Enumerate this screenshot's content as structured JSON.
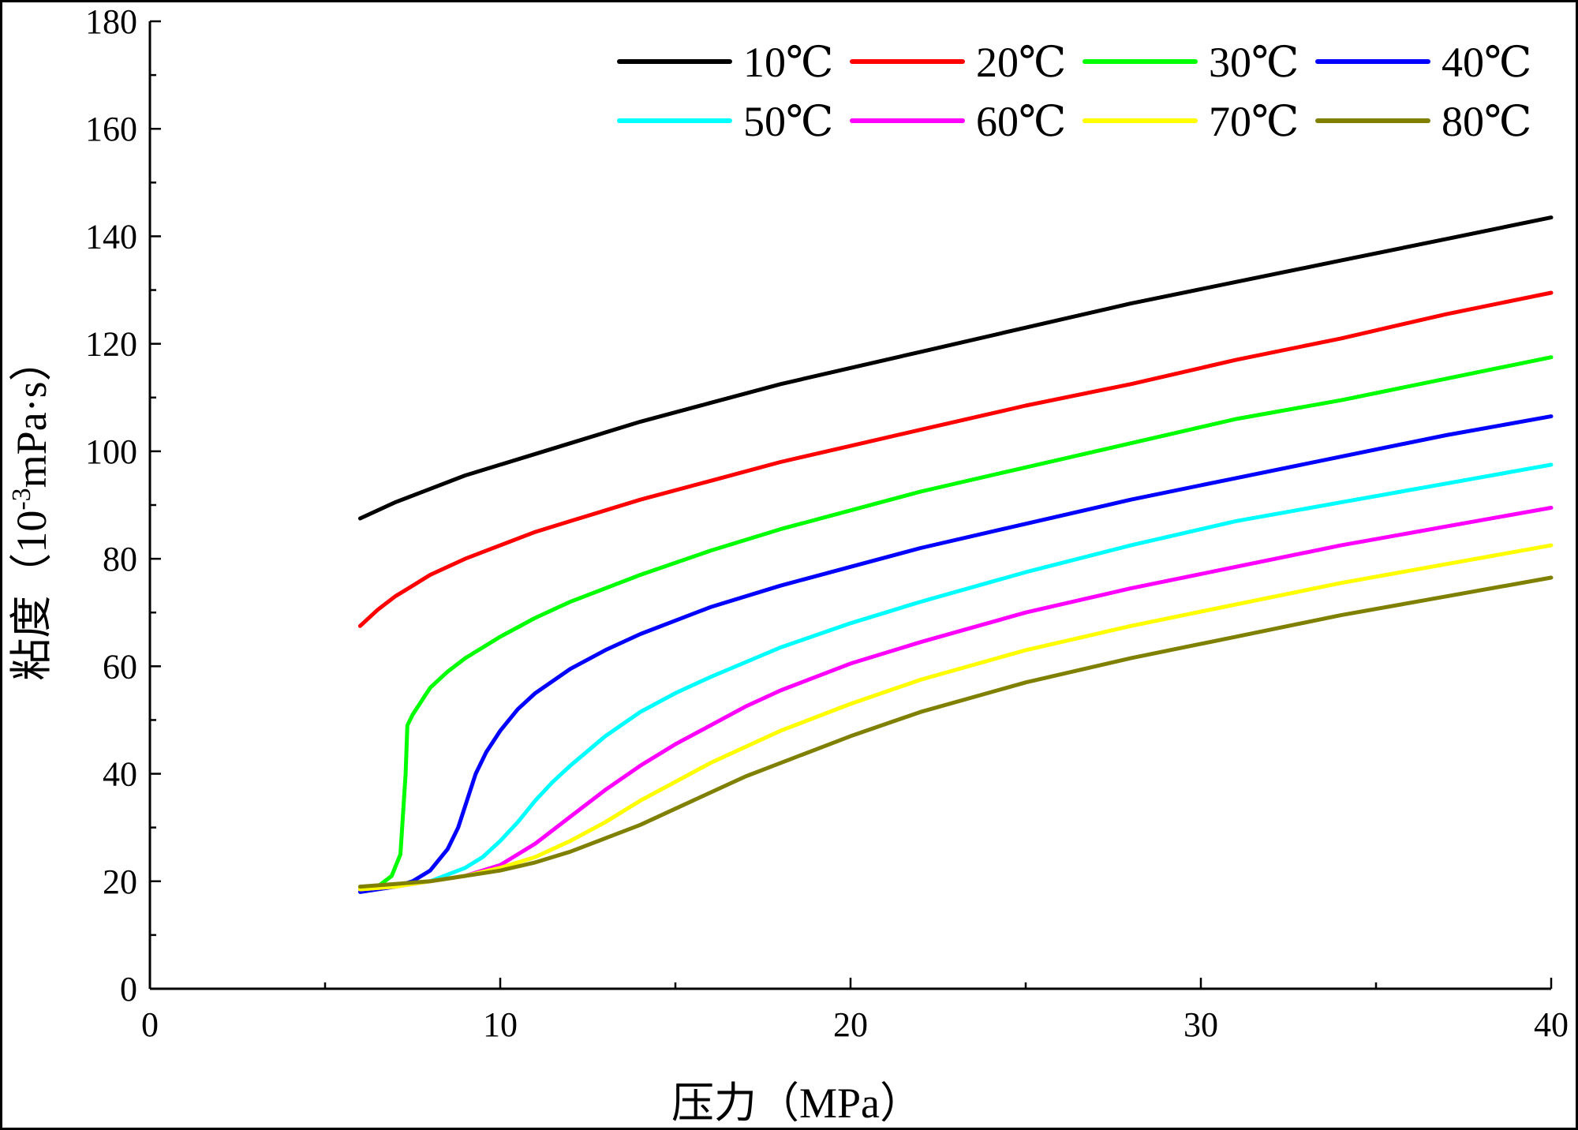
{
  "chart_data": {
    "type": "line",
    "title": "",
    "xlabel": "压力（MPa）",
    "ylabel": "粘度（10",
    "ylabel_sup": "-3",
    "ylabel_rest": "mPa·s）",
    "xlim": [
      0,
      40
    ],
    "ylim": [
      0,
      180
    ],
    "xticks": [
      0,
      10,
      20,
      30,
      40
    ],
    "yticks": [
      0,
      20,
      40,
      60,
      80,
      100,
      120,
      140,
      160,
      180
    ],
    "x_minor_step": 5,
    "y_minor_step": 10,
    "grid": false,
    "legend_position": "top-right",
    "series": [
      {
        "name": "10℃",
        "color": "#000000",
        "x": [
          6,
          7,
          8,
          9,
          10,
          11,
          12,
          14,
          16,
          18,
          20,
          22,
          25,
          28,
          31,
          34,
          37,
          40
        ],
        "y": [
          87.5,
          90.5,
          93.0,
          95.5,
          97.5,
          99.5,
          101.5,
          105.5,
          109.0,
          112.5,
          115.5,
          118.5,
          123.0,
          127.5,
          131.5,
          135.5,
          139.5,
          143.5
        ]
      },
      {
        "name": "20℃",
        "color": "#ff0000",
        "x": [
          6,
          6.5,
          7,
          7.5,
          8,
          9,
          10,
          11,
          12,
          14,
          16,
          18,
          20,
          22,
          25,
          28,
          31,
          34,
          37,
          40
        ],
        "y": [
          67.5,
          70.5,
          73.0,
          75.0,
          77.0,
          80.0,
          82.5,
          85.0,
          87.0,
          91.0,
          94.5,
          98.0,
          101.0,
          104.0,
          108.5,
          112.5,
          117.0,
          121.0,
          125.5,
          129.5
        ]
      },
      {
        "name": "30℃",
        "color": "#00ff00",
        "x": [
          6,
          6.5,
          6.9,
          7.15,
          7.3,
          7.35,
          7.5,
          8,
          8.5,
          9,
          9.5,
          10,
          11,
          12,
          13,
          14,
          16,
          18,
          20,
          22,
          25,
          28,
          31,
          34,
          37,
          40
        ],
        "y": [
          18.5,
          19.0,
          21.0,
          25.0,
          40.0,
          49.0,
          51.0,
          56.0,
          59.0,
          61.5,
          63.5,
          65.5,
          69.0,
          72.0,
          74.5,
          77.0,
          81.5,
          85.5,
          89.0,
          92.5,
          97.0,
          101.5,
          106.0,
          109.5,
          113.5,
          117.5
        ]
      },
      {
        "name": "40℃",
        "color": "#0000ff",
        "x": [
          6,
          7,
          7.5,
          8,
          8.5,
          8.8,
          9,
          9.3,
          9.6,
          10,
          10.5,
          11,
          12,
          13,
          14,
          15,
          16,
          18,
          20,
          22,
          25,
          28,
          31,
          34,
          37,
          40
        ],
        "y": [
          18.0,
          19.0,
          20.0,
          22.0,
          26.0,
          30.0,
          34.0,
          40.0,
          44.0,
          48.0,
          52.0,
          55.0,
          59.5,
          63.0,
          66.0,
          68.5,
          71.0,
          75.0,
          78.5,
          82.0,
          86.5,
          91.0,
          95.0,
          99.0,
          103.0,
          106.5
        ]
      },
      {
        "name": "50℃",
        "color": "#00ffff",
        "x": [
          6,
          7,
          8,
          9,
          9.5,
          10,
          10.5,
          11,
          11.5,
          12,
          13,
          14,
          15,
          16,
          18,
          20,
          22,
          25,
          28,
          31,
          34,
          37,
          40
        ],
        "y": [
          18.5,
          19.0,
          20.0,
          22.5,
          24.5,
          27.5,
          31.0,
          35.0,
          38.5,
          41.5,
          47.0,
          51.5,
          55.0,
          58.0,
          63.5,
          68.0,
          72.0,
          77.5,
          82.5,
          87.0,
          90.5,
          94.0,
          97.5
        ]
      },
      {
        "name": "60℃",
        "color": "#ff00ff",
        "x": [
          6,
          7,
          8,
          9,
          10,
          11,
          12,
          13,
          14,
          15,
          16,
          17,
          18,
          20,
          22,
          25,
          28,
          31,
          34,
          37,
          40
        ],
        "y": [
          18.5,
          19.0,
          20.0,
          21.0,
          23.0,
          27.0,
          32.0,
          37.0,
          41.5,
          45.5,
          49.0,
          52.5,
          55.5,
          60.5,
          64.5,
          70.0,
          74.5,
          78.5,
          82.5,
          86.0,
          89.5
        ]
      },
      {
        "name": "70℃",
        "color": "#ffff00",
        "x": [
          6,
          7,
          8,
          9,
          10,
          11,
          12,
          13,
          14,
          15,
          16,
          17,
          18,
          20,
          22,
          25,
          28,
          31,
          34,
          37,
          40
        ],
        "y": [
          18.5,
          19.0,
          20.0,
          21.0,
          22.5,
          24.5,
          27.5,
          31.0,
          35.0,
          38.5,
          42.0,
          45.0,
          48.0,
          53.0,
          57.5,
          63.0,
          67.5,
          71.5,
          75.5,
          79.0,
          82.5
        ]
      },
      {
        "name": "80℃",
        "color": "#808000",
        "x": [
          6,
          7,
          8,
          9,
          10,
          11,
          12,
          13,
          14,
          15,
          16,
          17,
          18,
          20,
          22,
          25,
          28,
          31,
          34,
          37,
          40
        ],
        "y": [
          19.0,
          19.5,
          20.0,
          21.0,
          22.0,
          23.5,
          25.5,
          28.0,
          30.5,
          33.5,
          36.5,
          39.5,
          42.0,
          47.0,
          51.5,
          57.0,
          61.5,
          65.5,
          69.5,
          73.0,
          76.5
        ]
      }
    ]
  }
}
